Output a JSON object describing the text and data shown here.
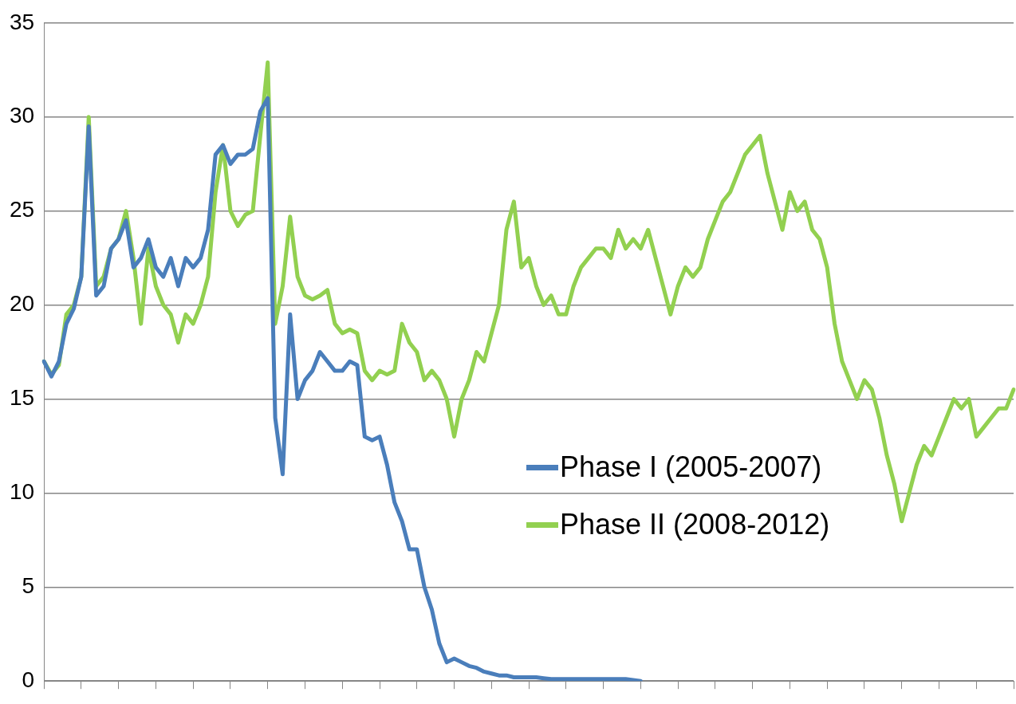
{
  "chart_data": {
    "type": "line",
    "categories": [
      null,
      null,
      null,
      null,
      null,
      null,
      null,
      null,
      null,
      null,
      null,
      null,
      null,
      null,
      null,
      null,
      null,
      null,
      null,
      null,
      null,
      null,
      null,
      null,
      null,
      null,
      null,
      null,
      null,
      null,
      null,
      null,
      null,
      null,
      null,
      null,
      null,
      null,
      null,
      null,
      null,
      null,
      null,
      null,
      null,
      null,
      null,
      null,
      null,
      null,
      null,
      null,
      null,
      null,
      null,
      null,
      null,
      null,
      null,
      null,
      null,
      null,
      null,
      null,
      null,
      null,
      null,
      null,
      null,
      null,
      null,
      null,
      null,
      null,
      null,
      null,
      null,
      null,
      null,
      null,
      null,
      null,
      null,
      null,
      null,
      null,
      null,
      null,
      null,
      null,
      null,
      null,
      null,
      null,
      null,
      null,
      null,
      null,
      null,
      null,
      null,
      null,
      null,
      null,
      null,
      null,
      null,
      null,
      null,
      null,
      null,
      null,
      null,
      null,
      null,
      null,
      null,
      null,
      null,
      null,
      null,
      null,
      null,
      null,
      null,
      null,
      null,
      null,
      null,
      null,
      null
    ],
    "series": [
      {
        "name": "Phase I (2005-2007)",
        "color": "#4a7ebb",
        "values": [
          17.0,
          16.2,
          17.0,
          19.0,
          19.8,
          21.5,
          29.5,
          20.5,
          21.0,
          23.0,
          23.5,
          24.5,
          22.0,
          22.5,
          23.5,
          22.0,
          21.5,
          22.5,
          21.0,
          22.5,
          22.0,
          22.5,
          24.0,
          28.0,
          28.5,
          27.5,
          28.0,
          28.0,
          28.3,
          30.3,
          31.0,
          14.0,
          11.0,
          19.5,
          15.0,
          16.0,
          16.5,
          17.5,
          17.0,
          16.5,
          16.5,
          17.0,
          16.8,
          13.0,
          12.8,
          13.0,
          11.5,
          9.5,
          8.5,
          7.0,
          7.0,
          5.0,
          3.8,
          2.0,
          1.0,
          1.2,
          1.0,
          0.8,
          0.7,
          0.5,
          0.4,
          0.3,
          0.3,
          0.2,
          0.2,
          0.2,
          0.2,
          0.15,
          0.1,
          0.1,
          0.1,
          0.1,
          0.1,
          0.1,
          0.1,
          0.1,
          0.1,
          0.1,
          0.1,
          0.05,
          0.0,
          null,
          null,
          null,
          null,
          null,
          null,
          null,
          null,
          null,
          null,
          null,
          null,
          null,
          null,
          null,
          null,
          null,
          null,
          null,
          null,
          null,
          null,
          null,
          null,
          null,
          null,
          null,
          null,
          null,
          null,
          null,
          null,
          null,
          null,
          null,
          null,
          null,
          null,
          null,
          null,
          null,
          null,
          null,
          null,
          null,
          null,
          null,
          null,
          null,
          null
        ]
      },
      {
        "name": "Phase II (2008-2012)",
        "color": "#92d050",
        "values": [
          17.0,
          16.3,
          16.8,
          19.5,
          20.0,
          21.5,
          30.0,
          21.0,
          21.5,
          23.0,
          23.5,
          25.0,
          22.5,
          19.0,
          23.0,
          21.0,
          20.0,
          19.5,
          18.0,
          19.5,
          19.0,
          20.0,
          21.5,
          26.0,
          28.5,
          25.0,
          24.2,
          24.8,
          25.0,
          29.0,
          32.9,
          19.0,
          21.0,
          24.7,
          21.5,
          20.5,
          20.3,
          20.5,
          20.8,
          19.0,
          18.5,
          18.7,
          18.5,
          16.5,
          16.0,
          16.5,
          16.3,
          16.5,
          19.0,
          18.0,
          17.5,
          16.0,
          16.5,
          16.0,
          15.0,
          13.0,
          15.0,
          16.0,
          17.5,
          17.0,
          18.5,
          20.0,
          24.0,
          25.5,
          22.0,
          22.5,
          21.0,
          20.0,
          20.5,
          19.5,
          19.5,
          21.0,
          22.0,
          22.5,
          23.0,
          23.0,
          22.5,
          24.0,
          23.0,
          23.5,
          23.0,
          24.0,
          22.5,
          21.0,
          19.5,
          21.0,
          22.0,
          21.5,
          22.0,
          23.5,
          24.5,
          25.5,
          26.0,
          27.0,
          28.0,
          28.5,
          29.0,
          27.0,
          25.5,
          24.0,
          26.0,
          25.0,
          25.5,
          24.0,
          23.5,
          22.0,
          19.0,
          17.0,
          16.0,
          15.0,
          16.0,
          15.5,
          14.0,
          12.0,
          10.5,
          8.5,
          10.0,
          11.5,
          12.5,
          12.0,
          13.0,
          14.0,
          15.0,
          14.5,
          15.0,
          13.0,
          13.5,
          14.0,
          14.5,
          14.5,
          15.5
        ]
      }
    ],
    "ylim": [
      0,
      35
    ],
    "yticks": [
      0,
      5,
      10,
      15,
      20,
      25,
      30,
      35
    ],
    "grid": "y",
    "legend": "center right",
    "marker": "none",
    "line_style": "solid"
  }
}
